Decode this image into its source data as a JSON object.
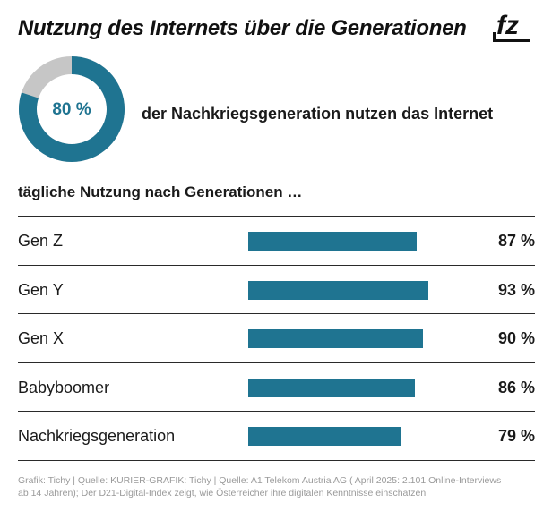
{
  "header": {
    "title": "Nutzung des Internets über die Generationen",
    "logo_text": "fz"
  },
  "donut": {
    "value": 80,
    "label": "80 %",
    "caption": "der Nachkriegsgeneration nutzen das Internet",
    "color_main": "#1f7491",
    "color_rest": "#c6c6c6"
  },
  "subtitle": "tägliche Nutzung nach Generationen …",
  "chart_data": {
    "type": "bar",
    "orientation": "horizontal",
    "title": "tägliche Nutzung nach Generationen …",
    "categories": [
      "Gen Z",
      "Gen Y",
      "Gen X",
      "Babyboomer",
      "Nachkriegsgeneration"
    ],
    "values": [
      87,
      93,
      90,
      86,
      79
    ],
    "value_labels": [
      "87 %",
      "93 %",
      "90 %",
      "86 %",
      "79 %"
    ],
    "unit": "%",
    "xlim": [
      0,
      100
    ],
    "bar_color": "#1f7491"
  },
  "footer": {
    "line1": "Grafik: Tichy | Quelle: KURIER-GRAFIK: Tichy | Quelle: A1 Telekom Austria AG ( April 2025: 2.101 Online-Interviews",
    "line2": "ab 14 Jahren); Der D21-Digital-Index zeigt, wie Österreicher ihre digitalen Kenntnisse einschätzen"
  }
}
